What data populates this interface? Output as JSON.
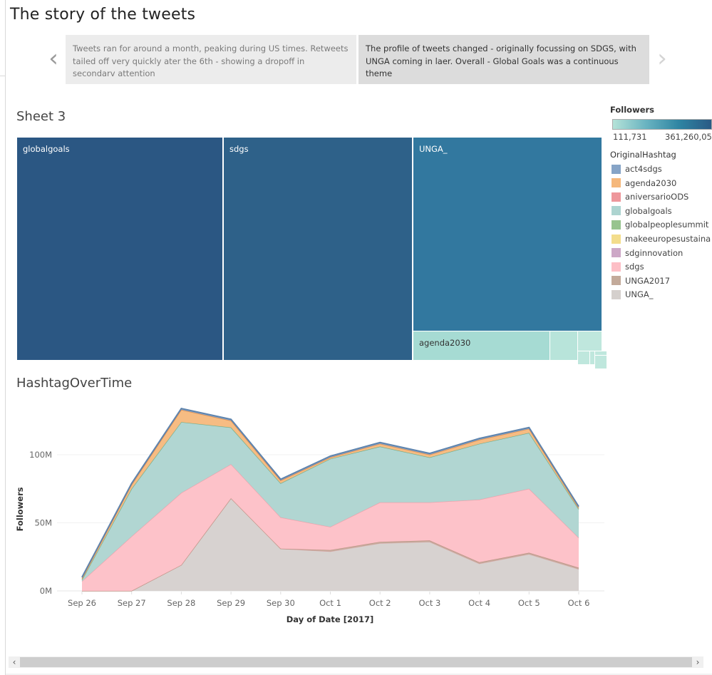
{
  "story": {
    "title": "The story of the tweets",
    "prev_icon": "‹",
    "next_icon": "›",
    "points": [
      {
        "text": "Tweets ran for around a month, peaking during US times. Retweets tailed off very quickly ater the 6th - showing a dropoff in secondarv attention",
        "selected": false
      },
      {
        "text": "The profile of tweets changed - originally focussing on SDGS, with UNGA coming in laer.   Overall - Global Goals was a continuous theme",
        "selected": true
      }
    ]
  },
  "treemap": {
    "title": "Sheet 3",
    "cells": [
      {
        "label": "globalgoals",
        "color": "#2b5783"
      },
      {
        "label": "sdgs",
        "color": "#2e6189"
      },
      {
        "label": "UNGA_",
        "color": "#32789f"
      },
      {
        "label": "agenda2030",
        "color": "#a6dbd3"
      },
      {
        "label": "",
        "color": "#b8e4da"
      },
      {
        "label": "",
        "color": "#bfe7dd"
      }
    ]
  },
  "legend": {
    "followers_title": "Followers",
    "followers_min": "111,731",
    "followers_max": "361,260,05",
    "hashtag_title": "OriginalHashtag",
    "items": [
      {
        "label": "act4sdgs",
        "color": "#86a4c7"
      },
      {
        "label": "agenda2030",
        "color": "#f5b87c"
      },
      {
        "label": "aniversarioODS",
        "color": "#ee979b"
      },
      {
        "label": "globalgoals",
        "color": "#add4d0"
      },
      {
        "label": "globalpeoplesummit",
        "color": "#97c48f"
      },
      {
        "label": "makeeuropesustaina",
        "color": "#f3dd8c"
      },
      {
        "label": "sdginnovation",
        "color": "#cda8c7"
      },
      {
        "label": "sdgs",
        "color": "#fdbfc6"
      },
      {
        "label": "UNGA2017",
        "color": "#c3aa9a"
      },
      {
        "label": "UNGA_",
        "color": "#d5d0cd"
      }
    ]
  },
  "chart_data": {
    "type": "area",
    "title": "HashtagOverTime",
    "xlabel": "Day of Date [2017]",
    "ylabel": "Followers",
    "ylim": [
      0,
      140
    ],
    "yunit": "M",
    "yticks": [
      0,
      50,
      100
    ],
    "ytick_labels": [
      "0M",
      "50M",
      "100M"
    ],
    "grid": true,
    "stacked": true,
    "categories": [
      "Sep 26",
      "Sep 27",
      "Sep 28",
      "Sep 29",
      "Sep 30",
      "Oct 1",
      "Oct 2",
      "Oct 3",
      "Oct 4",
      "Oct 5",
      "Oct 6"
    ],
    "series": [
      {
        "name": "UNGA_",
        "color": "#d5d0cd",
        "line": "#d8a6a6",
        "values": [
          0,
          0,
          19,
          68,
          31,
          29,
          35,
          36,
          20,
          27,
          16
        ]
      },
      {
        "name": "UNGA2017",
        "color": "#c3aa9a",
        "line": "#b89080",
        "values": [
          0,
          0,
          0,
          0,
          0,
          1,
          1,
          1,
          1,
          1,
          1
        ]
      },
      {
        "name": "sdgs",
        "color": "#fdbfc6",
        "line": "#f1a0aa",
        "values": [
          7,
          40,
          53,
          25,
          23,
          17,
          29,
          28,
          46,
          47,
          22
        ]
      },
      {
        "name": "globalgoals",
        "color": "#add4d0",
        "line": "#6aae8e",
        "values": [
          1,
          35,
          52,
          27,
          25,
          50,
          41,
          33,
          41,
          41,
          21
        ]
      },
      {
        "name": "agenda2030",
        "color": "#f5b87c",
        "line": "#ec8a3c",
        "values": [
          1,
          3,
          9,
          5,
          2,
          1,
          2,
          2,
          3,
          3,
          1
        ]
      },
      {
        "name": "act4sdgs",
        "color": "#86a4c7",
        "line": "#5f84ad",
        "values": [
          1,
          1,
          1,
          1,
          1,
          1,
          1,
          1,
          1,
          1,
          1
        ]
      }
    ]
  },
  "scrollbar": {
    "left_icon": "‹",
    "right_icon": "›"
  }
}
